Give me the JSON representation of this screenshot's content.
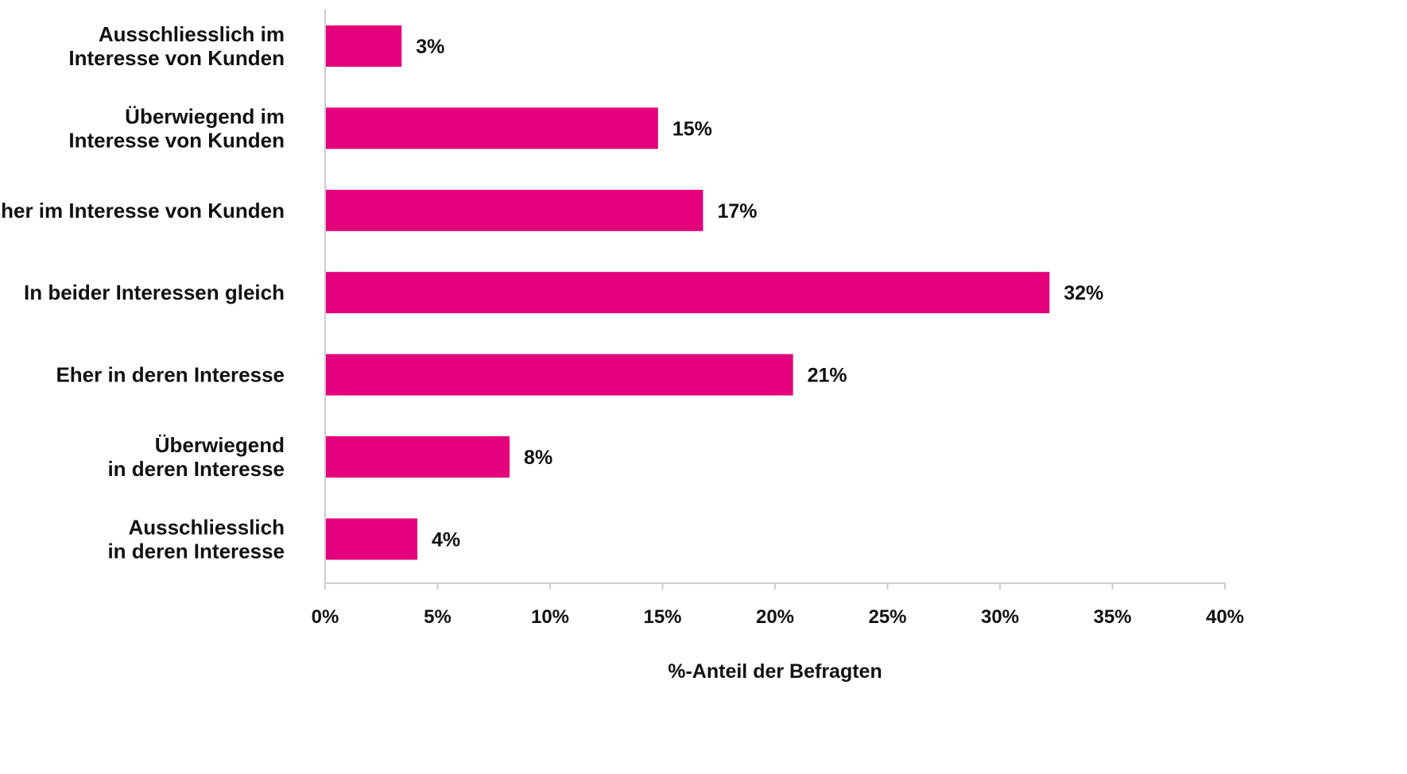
{
  "chart_data": {
    "type": "bar",
    "orientation": "horizontal",
    "categories": [
      [
        "Ausschliesslich im",
        "Interesse von Kunden"
      ],
      [
        "Überwiegend im",
        "Interesse von Kunden"
      ],
      [
        "Eher im Interesse von Kunden"
      ],
      [
        "In beider Interessen gleich"
      ],
      [
        "Eher in deren Interesse"
      ],
      [
        "Überwiegend",
        "in deren Interesse"
      ],
      [
        "Ausschliesslich",
        "in deren Interesse"
      ]
    ],
    "values": [
      3.4,
      14.8,
      16.8,
      32.2,
      20.8,
      8.2,
      4.1
    ],
    "value_labels": [
      "3%",
      "15%",
      "17%",
      "32%",
      "21%",
      "8%",
      "4%"
    ],
    "xlim": [
      0,
      40
    ],
    "xticks": [
      0,
      5,
      10,
      15,
      20,
      25,
      30,
      35,
      40
    ],
    "xtick_labels": [
      "0%",
      "5%",
      "10%",
      "15%",
      "20%",
      "25%",
      "30%",
      "35%",
      "40%"
    ],
    "xlabel": "%-Anteil der Befragten",
    "ylabel": "",
    "title": "",
    "grid": false,
    "legend": "none",
    "colors": {
      "bar": "#E4007C",
      "axis": "#cccccc",
      "text": "#111111"
    }
  }
}
